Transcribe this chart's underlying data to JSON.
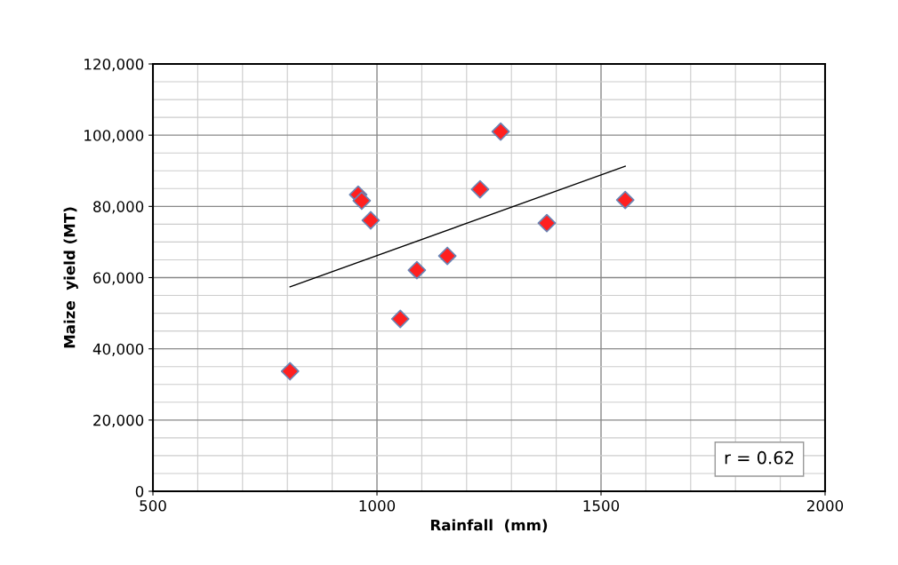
{
  "chart_data": {
    "type": "scatter",
    "xlabel": "Rainfall  (mm)",
    "ylabel": "Maize  yield (MT)",
    "series": [
      {
        "type": "scatter",
        "color": "#ff2020",
        "marker": "diamond",
        "x": [
          806,
          958,
          966,
          986,
          1052,
          1089,
          1157,
          1230,
          1276,
          1379,
          1554
        ],
        "values": [
          33700,
          83300,
          81600,
          76100,
          48400,
          62100,
          66100,
          84800,
          101000,
          75300,
          81800
        ]
      },
      {
        "type": "line",
        "color": "#000000",
        "marker": "none",
        "x": [
          806,
          1554
        ],
        "values": [
          57400,
          91300
        ]
      }
    ],
    "xlim": [
      500,
      2000
    ],
    "xticks": [
      500,
      1000,
      1500,
      2000
    ],
    "ylim": [
      0,
      120000
    ],
    "yticks": [
      0,
      {
        "value": 20000,
        "label": "20,000"
      },
      {
        "value": 40000,
        "label": "40,000"
      },
      {
        "value": 60000,
        "label": "60,000"
      },
      {
        "value": 80000,
        "label": "80,000"
      },
      {
        "value": 100000,
        "label": "100,000"
      },
      {
        "value": 120000,
        "label": "120,000"
      }
    ],
    "grid": true,
    "annotations": [
      "r = 0.62"
    ]
  }
}
